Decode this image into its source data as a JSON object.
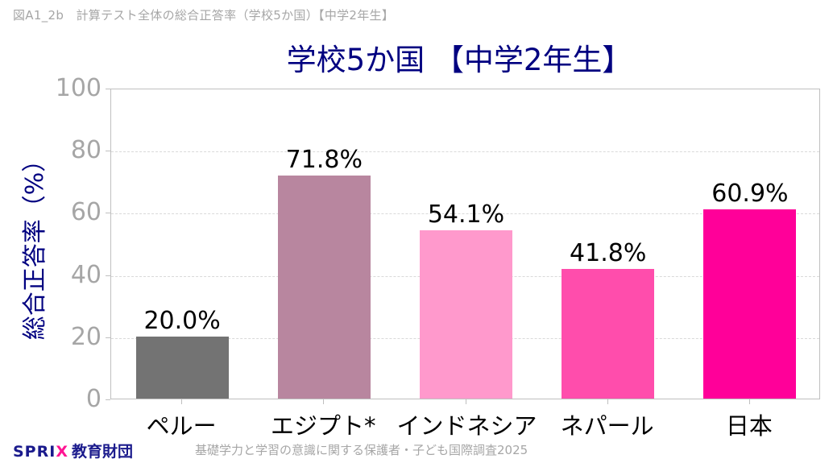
{
  "figure_label": "図A1_2b　計算テスト全体の総合正答率（学校5か国）【中学2年生】",
  "footer": {
    "logo_text": "SPRI",
    "logo_x": "X",
    "org_name": "教育財団",
    "source": "基礎学力と学習の意識に関する保護者・子ども国際調査2025"
  },
  "chart_data": {
    "type": "bar",
    "title": "学校5か国 【中学2年生】",
    "xlabel": "",
    "ylabel": "総合正答率（%）",
    "ylim": [
      0,
      100
    ],
    "yticks": [
      0,
      20,
      40,
      60,
      80,
      100
    ],
    "grid": true,
    "legend": null,
    "categories": [
      "ペルー",
      "エジプト*",
      "インドネシア",
      "ネパール",
      "日本"
    ],
    "values": [
      20.0,
      71.8,
      54.1,
      41.8,
      60.9
    ],
    "value_labels": [
      "20.0%",
      "71.8%",
      "54.1%",
      "41.8%",
      "60.9%"
    ],
    "colors": [
      "#737373",
      "#b8869f",
      "#ff99cc",
      "#ff4dac",
      "#ff0099"
    ]
  }
}
